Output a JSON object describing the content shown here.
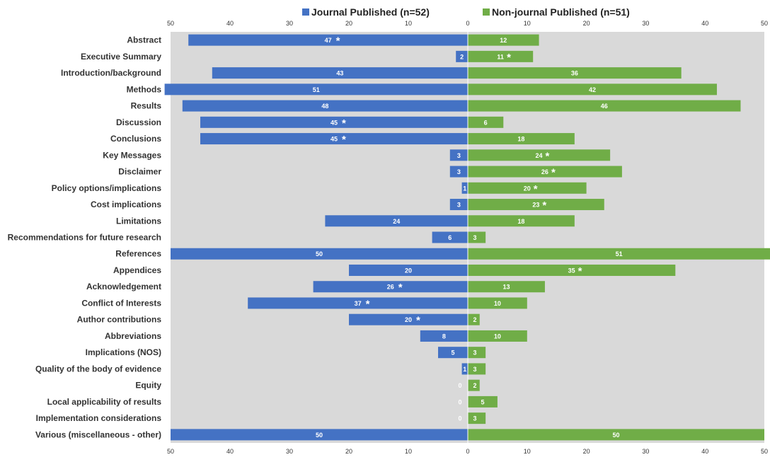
{
  "chart_data": {
    "type": "bar",
    "orientation": "horizontal-butterfly",
    "categories": [
      "Abstract",
      "Executive Summary",
      "Introduction/background",
      "Methods",
      "Results",
      "Discussion",
      "Conclusions",
      "Key Messages",
      "Disclaimer",
      "Policy options/implications",
      "Cost implications",
      "Limitations",
      "Recommendations for future research",
      "References",
      "Appendices",
      "Acknowledgement",
      "Conflict of Interests",
      "Author contributions",
      "Abbreviations",
      "Implications (NOS)",
      "Quality of the body of evidence",
      "Equity",
      "Local applicability of results",
      "Implementation considerations",
      "Various (miscellaneous - other)"
    ],
    "series": [
      {
        "name": "Journal Published (n=52)",
        "color": "#4472C4",
        "side": "left",
        "values": [
          47,
          2,
          43,
          51,
          48,
          45,
          45,
          3,
          3,
          1,
          3,
          24,
          6,
          50,
          20,
          26,
          37,
          20,
          8,
          5,
          1,
          0,
          0,
          0,
          50
        ],
        "labels": [
          "47",
          "2",
          "43",
          "51",
          "48",
          "45",
          "45",
          "3",
          "3",
          "1",
          "3",
          "24",
          "6",
          "50",
          "20",
          "26",
          "37",
          "20",
          "8",
          "5",
          "1",
          "0",
          "0",
          "0",
          "50"
        ],
        "starred": [
          true,
          false,
          false,
          false,
          false,
          true,
          true,
          false,
          false,
          false,
          false,
          false,
          false,
          false,
          false,
          true,
          true,
          true,
          false,
          false,
          false,
          false,
          false,
          false,
          false
        ]
      },
      {
        "name": "Non-journal Published (n=51)",
        "color": "#70AD47",
        "side": "right",
        "values": [
          12,
          11,
          36,
          42,
          46,
          6,
          18,
          24,
          26,
          20,
          23,
          18,
          3,
          51,
          35,
          13,
          10,
          2,
          10,
          3,
          3,
          2,
          5,
          3,
          50
        ],
        "labels": [
          "12",
          "11",
          "36",
          "42",
          "46",
          "6",
          "18",
          "24",
          "26",
          "20",
          "23",
          "18",
          "3",
          "51",
          "35",
          "13",
          "10",
          "2",
          "10",
          "3",
          "3",
          "2",
          "5",
          "3",
          "50"
        ],
        "starred": [
          false,
          true,
          false,
          false,
          false,
          false,
          false,
          true,
          true,
          true,
          true,
          false,
          false,
          false,
          true,
          false,
          false,
          false,
          false,
          false,
          false,
          false,
          false,
          false,
          false
        ]
      }
    ],
    "axis": {
      "range": [
        0,
        50
      ],
      "ticks_left": [
        "50",
        "40",
        "30",
        "20",
        "10",
        "0"
      ],
      "ticks_right": [
        "10",
        "20",
        "30",
        "40",
        "50"
      ]
    },
    "marker_symbol": "*",
    "legend_position": "top",
    "grid": false,
    "plot_background": "#D9D9D9"
  }
}
